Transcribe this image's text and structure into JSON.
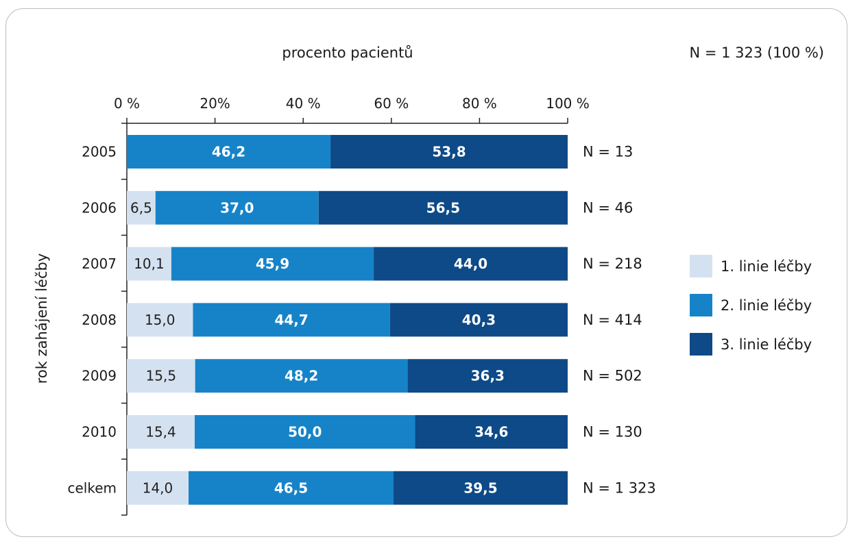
{
  "chart_data": {
    "type": "bar",
    "stacked": true,
    "orientation": "horizontal",
    "title": "procento pacientů",
    "total_label": "N = 1 323 (100 %)",
    "ylabel": "rok zahájení léčby",
    "xlim": [
      0,
      100
    ],
    "x_ticks": [
      "0 %",
      "20%",
      "40 %",
      "60 %",
      "80 %",
      "100 %"
    ],
    "categories": [
      "2005",
      "2006",
      "2007",
      "2008",
      "2009",
      "2010",
      "celkem"
    ],
    "n_labels": [
      "N = 13",
      "N = 46",
      "N = 218",
      "N = 414",
      "N = 502",
      "N = 130",
      "N = 1 323"
    ],
    "series": [
      {
        "name": "1. linie léčby",
        "color": "#d4e1f0",
        "values": [
          0,
          6.5,
          10.1,
          15.0,
          15.5,
          15.4,
          14.0
        ],
        "labels": [
          "",
          "6,5",
          "10,1",
          "15,0",
          "15,5",
          "15,4",
          "14,0"
        ]
      },
      {
        "name": "2. linie léčby",
        "color": "#1683c8",
        "values": [
          46.2,
          37.0,
          45.9,
          44.7,
          48.2,
          50.0,
          46.5
        ],
        "labels": [
          "46,2",
          "37,0",
          "45,9",
          "44,7",
          "48,2",
          "50,0",
          "46,5"
        ]
      },
      {
        "name": "3. linie léčby",
        "color": "#0d4a87",
        "values": [
          53.8,
          56.5,
          44.0,
          40.3,
          36.3,
          34.6,
          39.5
        ],
        "labels": [
          "53,8",
          "56,5",
          "44,0",
          "40,3",
          "36,3",
          "34,6",
          "39,5"
        ]
      }
    ],
    "legend": "right",
    "grid": false
  }
}
